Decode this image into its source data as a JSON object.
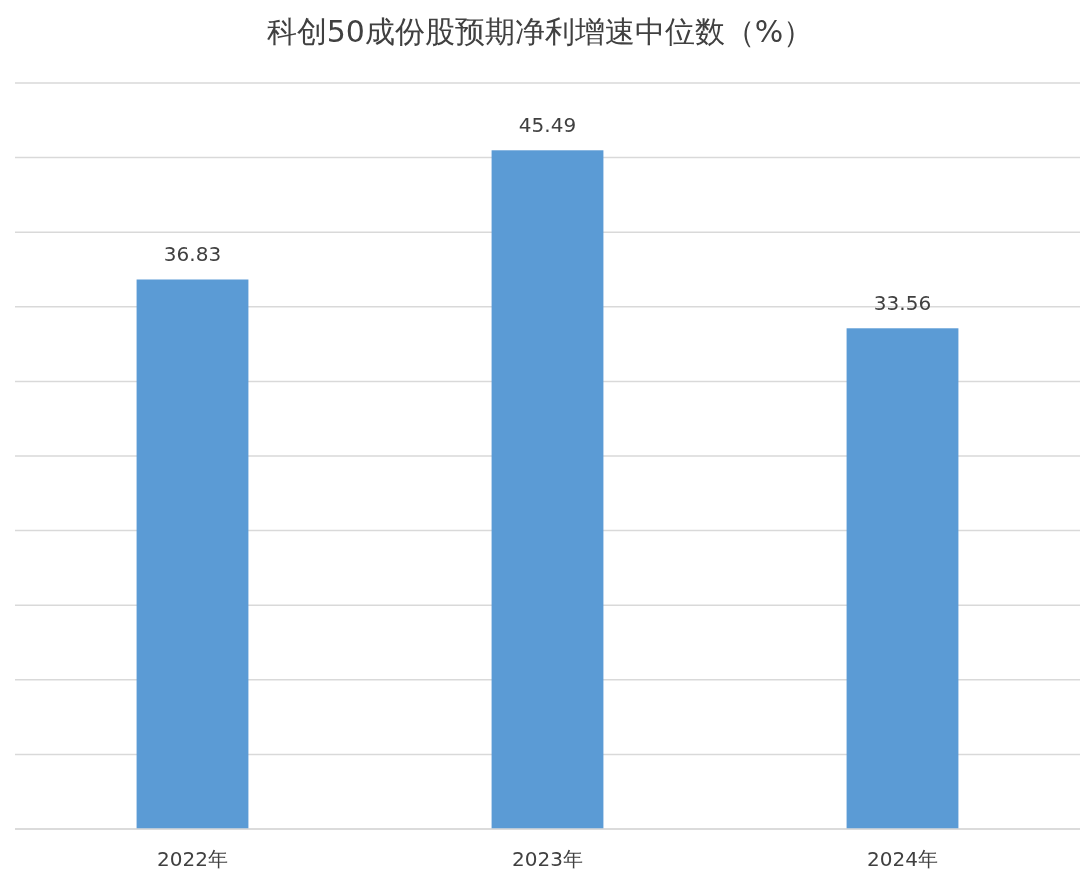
{
  "chart_data": {
    "type": "bar",
    "title": "科创50成份股预期净利增速中位数（%）",
    "categories": [
      "2022年",
      "2023年",
      "2024年"
    ],
    "values": [
      36.83,
      45.49,
      33.56
    ],
    "color": "#5b9bd5",
    "ylim": [
      0,
      50
    ],
    "yticks": [
      {
        "value": 0,
        "label": null
      },
      {
        "value": 5,
        "label": null
      },
      {
        "value": 10,
        "label": null
      },
      {
        "value": 15,
        "label": null
      },
      {
        "value": 20,
        "label": null
      },
      {
        "value": 25,
        "label": null
      },
      {
        "value": 30,
        "label": null
      },
      {
        "value": 35,
        "label": null
      },
      {
        "value": 40,
        "label": null
      },
      {
        "value": 45,
        "label": null
      },
      {
        "value": 50,
        "label": null
      }
    ],
    "grid": "y",
    "tick_labels": "x",
    "data_labels": true
  }
}
